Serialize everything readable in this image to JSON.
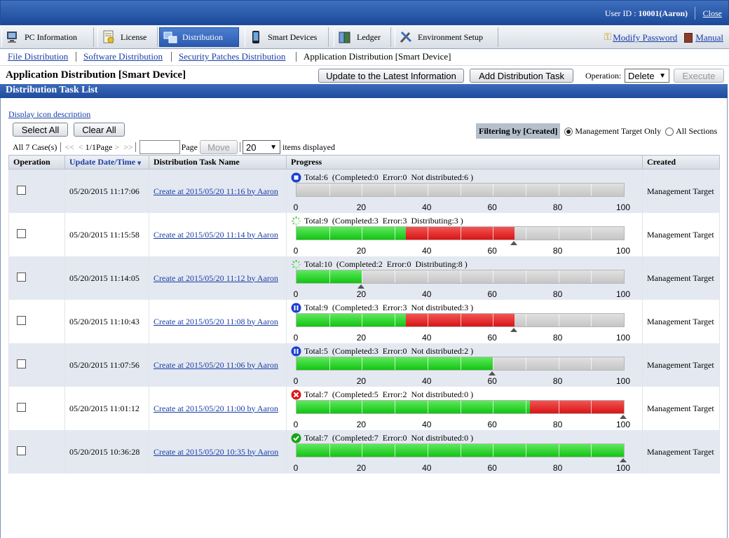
{
  "header": {
    "user_label": "User ID : ",
    "user_value": "10001(Aaron)",
    "close": "Close"
  },
  "tabs": [
    {
      "label": "PC Information",
      "icon": "pc-icon"
    },
    {
      "label": "License",
      "icon": "license-icon"
    },
    {
      "label": "Distribution",
      "icon": "distribution-icon",
      "active": true
    },
    {
      "label": "Smart Devices",
      "icon": "smartphone-icon"
    },
    {
      "label": "Ledger",
      "icon": "ledger-icon"
    },
    {
      "label": "Environment Setup",
      "icon": "tools-icon"
    }
  ],
  "top_links": {
    "modify_password": "Modify Password",
    "manual": "Manual"
  },
  "subnav": {
    "file": "File Distribution",
    "software": "Software Distribution",
    "security": "Security Patches Distribution",
    "current": "Application Distribution [Smart Device]"
  },
  "page": {
    "title": "Application Distribution [Smart Device]",
    "update_btn": "Update to the Latest Information",
    "add_btn": "Add Distribution Task",
    "operation_label": "Operation:",
    "operation_value": "Delete",
    "execute_btn": "Execute"
  },
  "section_title": "Distribution Task List",
  "display_icon_desc": "Display icon description",
  "select_all": "Select All",
  "clear_all": "Clear All",
  "filter": {
    "label": "Filtering by [Created]",
    "opt1": "Management Target Only",
    "opt2": "All Sections",
    "selected": "opt1"
  },
  "pager": {
    "count": "All 7 Case(s)",
    "first": "<<",
    "prev": "<",
    "page": "1/1Page",
    "next": ">",
    "last": ">>",
    "page_label": "Page",
    "move": "Move",
    "per_page": "20",
    "items_displayed": "items displayed"
  },
  "columns": {
    "operation": "Operation",
    "date": "Update Date/Time",
    "name": "Distribution Task Name",
    "progress": "Progress",
    "created": "Created"
  },
  "axis_ticks": [
    "0",
    "20",
    "40",
    "60",
    "80",
    "100"
  ],
  "colors": {
    "completed": "#22cc22",
    "error": "#e02020",
    "remaining": "#cfcfcf",
    "header_blue": "#1e4b9b"
  },
  "rows": [
    {
      "date": "05/20/2015 11:17:06",
      "name": "Create at 2015/05/20 11:16 by Aaron",
      "status_icon": "stop-icon",
      "stat": "Total:6  (Completed:0  Error:0  Not distributed:6 )",
      "completed_pct": 0,
      "error_pct": 0,
      "created": "Management Target"
    },
    {
      "date": "05/20/2015 11:15:58",
      "name": "Create at 2015/05/20 11:14 by Aaron",
      "status_icon": "spinner-icon",
      "stat": "Total:9  (Completed:3  Error:3  Distributing:3 )",
      "completed_pct": 33.3,
      "error_pct": 33.3,
      "created": "Management Target"
    },
    {
      "date": "05/20/2015 11:14:05",
      "name": "Create at 2015/05/20 11:12 by Aaron",
      "status_icon": "spinner-icon",
      "stat": "Total:10  (Completed:2  Error:0  Distributing:8 )",
      "completed_pct": 20,
      "error_pct": 0,
      "created": "Management Target"
    },
    {
      "date": "05/20/2015 11:10:43",
      "name": "Create at 2015/05/20 11:08 by Aaron",
      "status_icon": "pause-icon",
      "stat": "Total:9  (Completed:3  Error:3  Not distributed:3 )",
      "completed_pct": 33.3,
      "error_pct": 33.3,
      "created": "Management Target"
    },
    {
      "date": "05/20/2015 11:07:56",
      "name": "Create at 2015/05/20 11:06 by Aaron",
      "status_icon": "pause-icon",
      "stat": "Total:5  (Completed:3  Error:0  Not distributed:2 )",
      "completed_pct": 60,
      "error_pct": 0,
      "created": "Management Target"
    },
    {
      "date": "05/20/2015 11:01:12",
      "name": "Create at 2015/05/20 11:00 by Aaron",
      "status_icon": "error-icon",
      "stat": "Total:7  (Completed:5  Error:2  Not distributed:0 )",
      "completed_pct": 71.4,
      "error_pct": 28.6,
      "created": "Management Target"
    },
    {
      "date": "05/20/2015 10:36:28",
      "name": "Create at 2015/05/20 10:35 by Aaron",
      "status_icon": "complete-icon",
      "stat": "Total:7  (Completed:7  Error:0  Not distributed:0 )",
      "completed_pct": 100,
      "error_pct": 0,
      "created": "Management Target"
    }
  ]
}
